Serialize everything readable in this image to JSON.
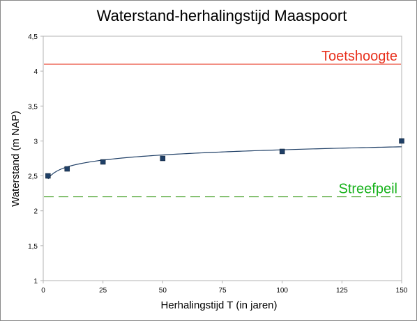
{
  "chart_data": {
    "type": "scatter",
    "title": "Waterstand-herhalingstijd Maaspoort",
    "xlabel": "Herhalingstijd T (in jaren)",
    "ylabel": "Waterstand (m NAP)",
    "xlim": [
      0,
      150
    ],
    "ylim": [
      1,
      4.5
    ],
    "x_ticks": [
      0,
      25,
      50,
      75,
      100,
      125,
      150
    ],
    "y_ticks": [
      1,
      1.5,
      2,
      2.5,
      3,
      3.5,
      4,
      4.5
    ],
    "y_tick_labels": [
      "1",
      "1,5",
      "2",
      "2,5",
      "3",
      "3,5",
      "4",
      "4,5"
    ],
    "grid": false,
    "series": [
      {
        "type": "scatter",
        "color": "#1f3f66",
        "x": [
          2,
          10,
          25,
          50,
          100,
          150
        ],
        "y": [
          2.5,
          2.6,
          2.7,
          2.75,
          2.85,
          3.0
        ]
      },
      {
        "type": "trendline",
        "kind": "logarithmic",
        "color": "#1f3f66",
        "x_range": [
          2,
          150
        ]
      }
    ],
    "reference_lines": [
      {
        "label": "Toetshoogte",
        "y": 4.1,
        "color": "#e8301c",
        "style": "solid"
      },
      {
        "label": "Streefpeil",
        "y": 2.2,
        "color": "#3a9a1a",
        "label_color": "#17b21b",
        "style": "dashed"
      }
    ]
  }
}
